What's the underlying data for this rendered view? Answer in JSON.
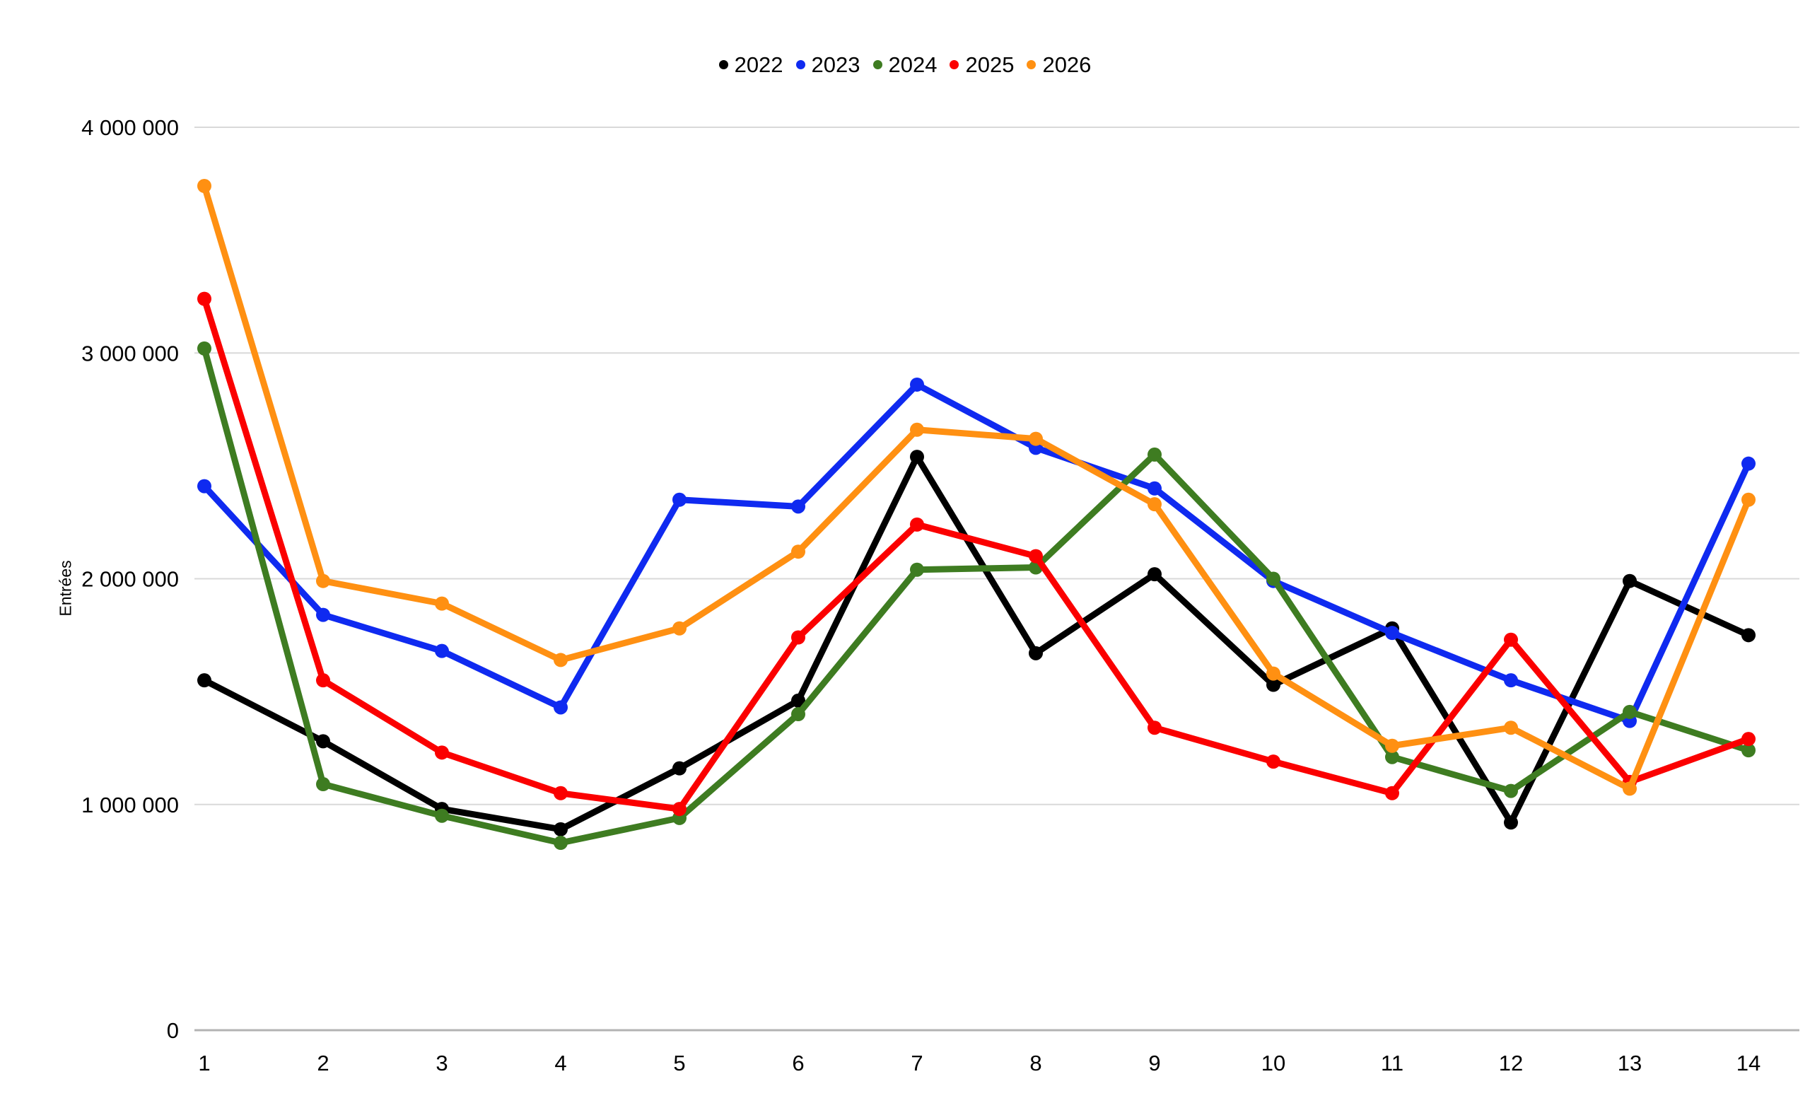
{
  "chart_data": {
    "type": "line",
    "title": "",
    "ylabel": "Entrées",
    "xlabel": "",
    "grid": true,
    "legend_position": "top-center",
    "x_categories": [
      "1",
      "2",
      "3",
      "4",
      "5",
      "6",
      "7",
      "8",
      "9",
      "10",
      "11",
      "12",
      "13",
      "14"
    ],
    "y_axis": {
      "min": 0,
      "max": 4000000,
      "tick_interval": 1000000,
      "tick_labels": [
        "0",
        "1 000 000",
        "2 000 000",
        "3 000 000",
        "4 000 000"
      ]
    },
    "series": [
      {
        "name": "2022",
        "color": "#000000",
        "values": [
          1550000,
          1280000,
          980000,
          890000,
          1160000,
          1460000,
          2540000,
          1670000,
          2020000,
          1530000,
          1780000,
          920000,
          1990000,
          1750000
        ]
      },
      {
        "name": "2023",
        "color": "#0f2af0",
        "values": [
          2410000,
          1840000,
          1680000,
          1430000,
          2350000,
          2320000,
          2860000,
          2580000,
          2400000,
          1990000,
          1760000,
          1550000,
          1370000,
          2510000
        ]
      },
      {
        "name": "2024",
        "color": "#3e7c21",
        "values": [
          3020000,
          1090000,
          950000,
          830000,
          940000,
          1400000,
          2040000,
          2050000,
          2550000,
          2000000,
          1210000,
          1060000,
          1410000,
          1240000
        ]
      },
      {
        "name": "2025",
        "color": "#fb0000",
        "values": [
          3240000,
          1550000,
          1230000,
          1050000,
          980000,
          1740000,
          2240000,
          2100000,
          1340000,
          1190000,
          1050000,
          1730000,
          1100000,
          1290000
        ]
      },
      {
        "name": "2026",
        "color": "#ff9012",
        "values": [
          3740000,
          1990000,
          1890000,
          1640000,
          1780000,
          2120000,
          2660000,
          2620000,
          2330000,
          1580000,
          1260000,
          1340000,
          1070000,
          2350000
        ]
      }
    ]
  },
  "colors": {
    "background": "#ffffff",
    "gridline": "#d9d9d9",
    "axis_line": "#b3b3b3",
    "text": "#000000"
  }
}
